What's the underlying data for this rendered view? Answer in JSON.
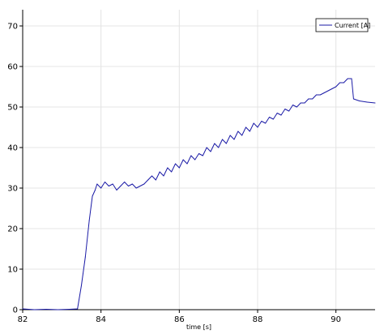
{
  "chart_data": {
    "type": "line",
    "title": "",
    "xlabel": "time [s]",
    "ylabel": "",
    "xlim": [
      82,
      91
    ],
    "ylim": [
      0,
      74
    ],
    "xticks": [
      82,
      84,
      86,
      88,
      90
    ],
    "yticks": [
      0,
      10,
      20,
      30,
      40,
      50,
      60,
      70
    ],
    "grid": true,
    "legend_position": "top-right",
    "series": [
      {
        "name": "Current [A]",
        "color": "#1a1aa6",
        "points": [
          [
            82.0,
            0.2
          ],
          [
            82.3,
            0.0
          ],
          [
            82.6,
            0.1
          ],
          [
            82.9,
            0.0
          ],
          [
            83.2,
            0.1
          ],
          [
            83.4,
            0.2
          ],
          [
            83.5,
            6
          ],
          [
            83.6,
            13
          ],
          [
            83.7,
            22
          ],
          [
            83.78,
            28
          ],
          [
            83.85,
            29.5
          ],
          [
            83.9,
            31
          ],
          [
            84.0,
            30
          ],
          [
            84.1,
            31.5
          ],
          [
            84.2,
            30.5
          ],
          [
            84.3,
            31
          ],
          [
            84.4,
            29.5
          ],
          [
            84.5,
            30.5
          ],
          [
            84.6,
            31.5
          ],
          [
            84.7,
            30.5
          ],
          [
            84.8,
            31
          ],
          [
            84.9,
            30
          ],
          [
            85.0,
            30.5
          ],
          [
            85.1,
            31
          ],
          [
            85.2,
            32
          ],
          [
            85.3,
            33
          ],
          [
            85.4,
            32
          ],
          [
            85.5,
            34
          ],
          [
            85.6,
            33
          ],
          [
            85.7,
            35
          ],
          [
            85.8,
            34
          ],
          [
            85.9,
            36
          ],
          [
            86.0,
            35
          ],
          [
            86.1,
            37
          ],
          [
            86.2,
            36
          ],
          [
            86.3,
            38
          ],
          [
            86.4,
            37
          ],
          [
            86.5,
            38.5
          ],
          [
            86.6,
            38
          ],
          [
            86.7,
            40
          ],
          [
            86.8,
            39
          ],
          [
            86.9,
            41
          ],
          [
            87.0,
            40
          ],
          [
            87.1,
            42
          ],
          [
            87.2,
            41
          ],
          [
            87.3,
            43
          ],
          [
            87.4,
            42
          ],
          [
            87.5,
            44
          ],
          [
            87.6,
            43
          ],
          [
            87.7,
            45
          ],
          [
            87.8,
            44
          ],
          [
            87.9,
            46
          ],
          [
            88.0,
            45
          ],
          [
            88.1,
            46.5
          ],
          [
            88.2,
            46
          ],
          [
            88.3,
            47.5
          ],
          [
            88.4,
            47
          ],
          [
            88.5,
            48.5
          ],
          [
            88.6,
            48
          ],
          [
            88.7,
            49.5
          ],
          [
            88.8,
            49
          ],
          [
            88.9,
            50.5
          ],
          [
            89.0,
            50
          ],
          [
            89.1,
            51
          ],
          [
            89.2,
            51
          ],
          [
            89.3,
            52
          ],
          [
            89.4,
            52
          ],
          [
            89.5,
            53
          ],
          [
            89.6,
            53
          ],
          [
            89.7,
            53.5
          ],
          [
            89.8,
            54
          ],
          [
            89.9,
            54.5
          ],
          [
            90.0,
            55
          ],
          [
            90.1,
            56
          ],
          [
            90.2,
            56
          ],
          [
            90.3,
            57
          ],
          [
            90.4,
            57
          ],
          [
            90.45,
            52
          ],
          [
            90.6,
            51.5
          ],
          [
            90.8,
            51.2
          ],
          [
            91.0,
            51
          ]
        ]
      }
    ]
  }
}
